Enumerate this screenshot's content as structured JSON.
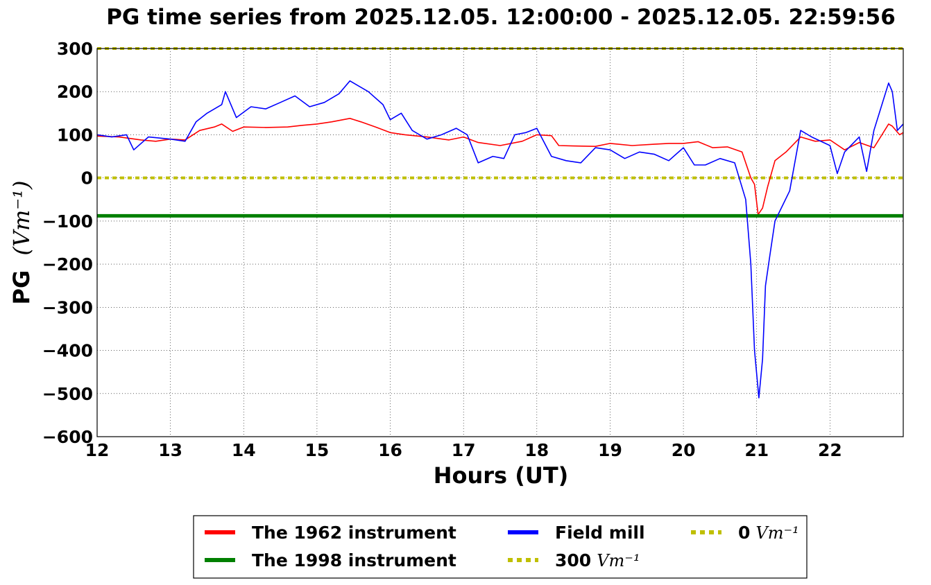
{
  "chart_data": {
    "type": "line",
    "title": "PG time series from 2025.12.05. 12:00:00 - 2025.12.05. 22:59:56",
    "xlabel": "Hours (UT)",
    "ylabel": "PG",
    "ylabel_unit": "(Vm⁻¹)",
    "xlim": [
      12,
      23
    ],
    "ylim": [
      -600,
      300
    ],
    "grid": true,
    "legend_position": "bottom-center, below plot",
    "x_ticks": [
      "12",
      "13",
      "14",
      "15",
      "16",
      "17",
      "18",
      "19",
      "20",
      "21",
      "22"
    ],
    "y_ticks": [
      "300",
      "200",
      "100",
      "0",
      "−100",
      "−200",
      "−300",
      "−400",
      "−500",
      "−600"
    ],
    "series": [
      {
        "name": "The 1962 instrument",
        "color": "#ff0000",
        "x": [
          12.0,
          12.3,
          12.6,
          12.8,
          13.0,
          13.2,
          13.4,
          13.6,
          13.7,
          13.85,
          14.0,
          14.3,
          14.6,
          14.8,
          15.0,
          15.2,
          15.45,
          15.6,
          15.8,
          16.0,
          16.2,
          16.5,
          16.8,
          17.0,
          17.2,
          17.5,
          17.8,
          18.0,
          18.2,
          18.3,
          18.5,
          18.8,
          19.0,
          19.3,
          19.6,
          19.8,
          20.0,
          20.2,
          20.4,
          20.6,
          20.8,
          20.92,
          20.97,
          21.02,
          21.08,
          21.15,
          21.25,
          21.4,
          21.6,
          21.8,
          22.0,
          22.2,
          22.4,
          22.6,
          22.8,
          22.85,
          22.95,
          23.0
        ],
        "y": [
          97,
          95,
          88,
          85,
          90,
          88,
          110,
          118,
          125,
          108,
          118,
          117,
          118,
          122,
          125,
          130,
          138,
          130,
          118,
          105,
          100,
          95,
          88,
          95,
          82,
          75,
          85,
          100,
          98,
          75,
          74,
          73,
          80,
          75,
          78,
          80,
          80,
          84,
          70,
          72,
          60,
          0,
          -15,
          -85,
          -70,
          -20,
          40,
          60,
          95,
          85,
          88,
          65,
          82,
          70,
          125,
          120,
          100,
          105
        ]
      },
      {
        "name": "The 1998 instrument",
        "color": "#008000",
        "x": [
          12.0,
          23.0
        ],
        "y": [
          -88,
          -88
        ]
      },
      {
        "name": "Field mill",
        "color": "#0000ff",
        "x": [
          12.0,
          12.2,
          12.4,
          12.5,
          12.7,
          13.0,
          13.2,
          13.35,
          13.5,
          13.7,
          13.75,
          13.9,
          14.1,
          14.3,
          14.5,
          14.7,
          14.9,
          15.1,
          15.3,
          15.45,
          15.55,
          15.7,
          15.9,
          16.0,
          16.15,
          16.3,
          16.5,
          16.7,
          16.9,
          17.05,
          17.2,
          17.4,
          17.55,
          17.7,
          17.85,
          18.0,
          18.2,
          18.4,
          18.6,
          18.8,
          19.0,
          19.2,
          19.4,
          19.6,
          19.8,
          20.0,
          20.15,
          20.3,
          20.5,
          20.7,
          20.85,
          20.92,
          20.97,
          21.03,
          21.08,
          21.12,
          21.18,
          21.25,
          21.35,
          21.45,
          21.6,
          21.75,
          22.0,
          22.1,
          22.2,
          22.4,
          22.5,
          22.6,
          22.8,
          22.85,
          22.92,
          23.0
        ],
        "y": [
          100,
          95,
          100,
          65,
          95,
          90,
          85,
          130,
          150,
          170,
          200,
          140,
          165,
          160,
          175,
          190,
          165,
          175,
          195,
          225,
          215,
          200,
          170,
          135,
          150,
          110,
          90,
          100,
          115,
          100,
          35,
          50,
          45,
          100,
          105,
          115,
          50,
          40,
          35,
          70,
          65,
          45,
          60,
          55,
          40,
          70,
          30,
          30,
          45,
          35,
          -50,
          -200,
          -400,
          -510,
          -420,
          -250,
          -180,
          -100,
          -65,
          -30,
          110,
          95,
          75,
          10,
          60,
          95,
          15,
          110,
          220,
          200,
          110,
          125
        ]
      }
    ],
    "reference_lines": [
      {
        "name": "300 Vm⁻¹",
        "value": 300,
        "color": "#bfbf00",
        "style": "dotted"
      },
      {
        "name": "0 Vm⁻¹",
        "value": 0,
        "color": "#bfbf00",
        "style": "dotted"
      }
    ],
    "legend": [
      {
        "label": "The 1962 instrument",
        "unit": "",
        "color": "#ff0000",
        "style": "solid"
      },
      {
        "label": "The 1998 instrument",
        "unit": "",
        "color": "#008000",
        "style": "solid"
      },
      {
        "label": "Field mill",
        "unit": "",
        "color": "#0000ff",
        "style": "solid"
      },
      {
        "label": "300",
        "unit": "Vm⁻¹",
        "color": "#bfbf00",
        "style": "dotted"
      },
      {
        "label": "0",
        "unit": "Vm⁻¹",
        "color": "#bfbf00",
        "style": "dotted"
      }
    ]
  }
}
